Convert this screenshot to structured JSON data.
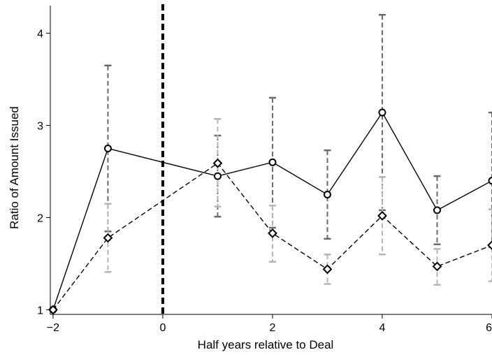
{
  "chart_data": {
    "type": "line",
    "title": "",
    "xlabel": "Half years relative to Deal",
    "ylabel": "Ratio of Amount Issued",
    "xlim": [
      -2.05,
      6
    ],
    "ylim": [
      0.95,
      4.3
    ],
    "x_ticks": [
      -2,
      0,
      2,
      4,
      6
    ],
    "x_tick_labels": [
      "−2",
      "0",
      "2",
      "4",
      "6"
    ],
    "y_ticks": [
      1,
      2,
      3,
      4
    ],
    "y_tick_labels": [
      "1",
      "2",
      "3",
      "4"
    ],
    "grid": false,
    "legend": "none",
    "reference_line": {
      "x": 0,
      "style": "dashed"
    },
    "series": [
      {
        "style": "solid",
        "marker": "circle",
        "color": "#000000",
        "errorbar_color": "#6a6a6a",
        "x": [
          -2,
          -1,
          1,
          2,
          3,
          4,
          5,
          6
        ],
        "y": [
          1.0,
          2.75,
          2.45,
          2.6,
          2.25,
          3.14,
          2.08,
          2.4
        ],
        "ci_low": [
          1.0,
          1.85,
          2.01,
          1.89,
          1.77,
          2.08,
          1.71,
          1.68
        ],
        "ci_high": [
          1.0,
          3.65,
          2.89,
          3.3,
          2.73,
          4.2,
          2.45,
          3.14
        ]
      },
      {
        "style": "dashed",
        "marker": "diamond",
        "color": "#000000",
        "errorbar_color": "#b5b5b5",
        "x": [
          -2,
          -1,
          1,
          2,
          3,
          4,
          5,
          6
        ],
        "y": [
          1.0,
          1.78,
          2.59,
          1.83,
          1.44,
          2.02,
          1.47,
          1.7
        ],
        "ci_low": [
          1.0,
          1.41,
          2.12,
          1.52,
          1.28,
          1.6,
          1.27,
          1.31
        ],
        "ci_high": [
          1.0,
          2.15,
          3.07,
          2.13,
          1.6,
          2.44,
          1.66,
          2.09
        ]
      }
    ]
  }
}
